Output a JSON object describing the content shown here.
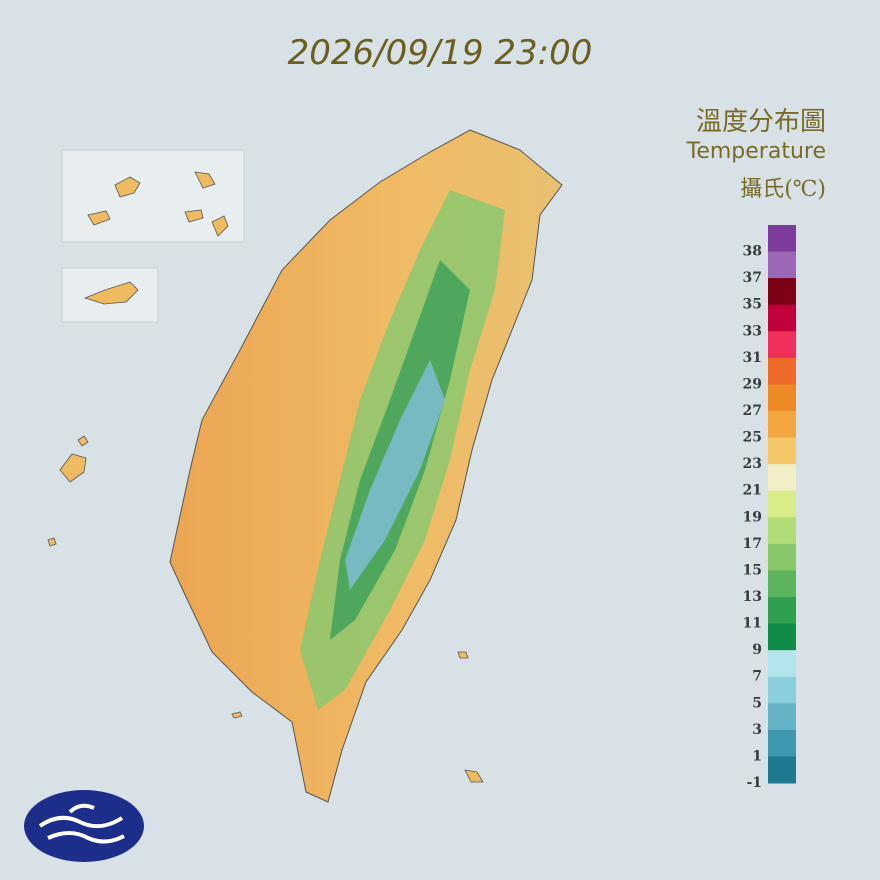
{
  "title": "2026/09/19 23:00",
  "legend": {
    "title": "溫度分布圖",
    "subtitle": "Temperature",
    "unit": "攝氏(℃)",
    "ticks": [
      38,
      37,
      35,
      33,
      31,
      29,
      27,
      25,
      23,
      21,
      19,
      17,
      15,
      13,
      11,
      9,
      7,
      5,
      3,
      1,
      -1
    ],
    "colors": [
      "#7d3c9c",
      "#9a68b4",
      "#7b0015",
      "#c0003c",
      "#f0305a",
      "#ee6a2a",
      "#ee8a26",
      "#f2a640",
      "#f4c868",
      "#f2eec8",
      "#d8ec88",
      "#b0dc78",
      "#88c86a",
      "#5cb45c",
      "#30a050",
      "#0e8c48",
      "#b4e4ec",
      "#8ccfdc",
      "#64b4c6",
      "#3f98ae",
      "#1f788e"
    ]
  }
}
